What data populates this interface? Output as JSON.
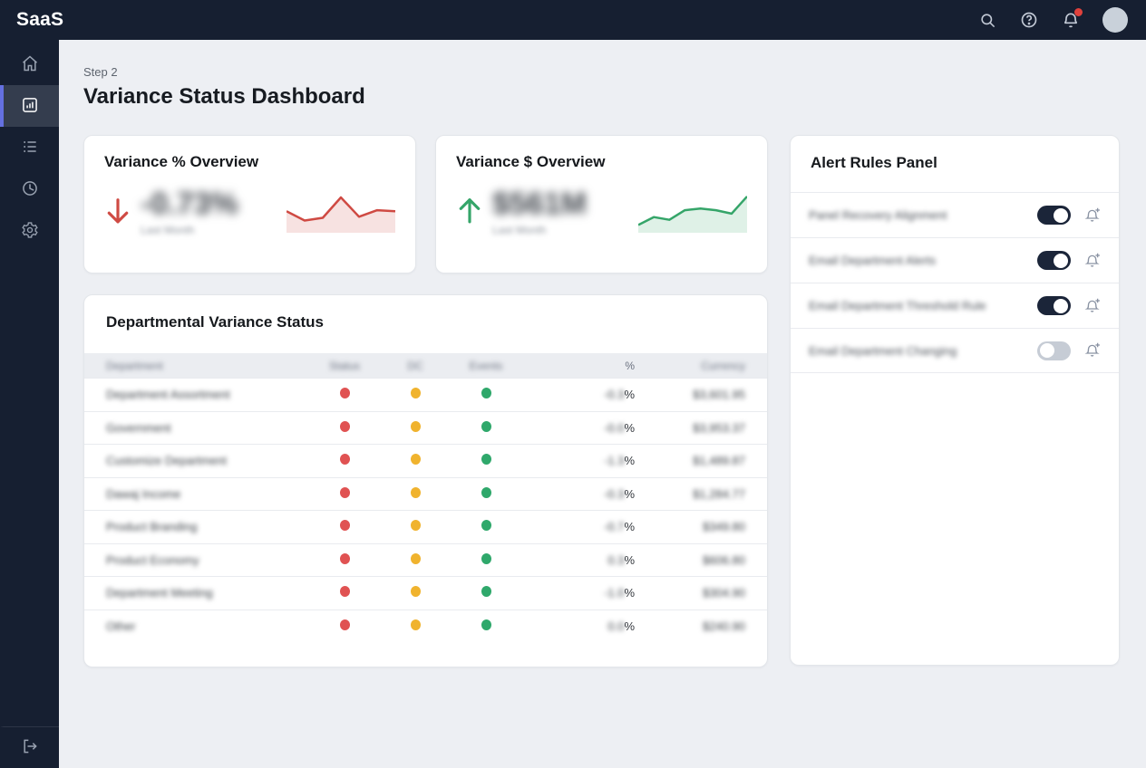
{
  "navbar": {
    "brand": "SaaS",
    "icons": [
      "search-icon",
      "help-icon",
      "bell-icon",
      "avatar"
    ],
    "notification_badge_color": "#e0413c",
    "background": "#161f31"
  },
  "sidebar": {
    "accent": "#6470e0",
    "items": [
      {
        "name": "home",
        "icon": "home-icon",
        "active": false
      },
      {
        "name": "dashboard",
        "icon": "bar-chart-icon",
        "active": true
      },
      {
        "name": "list",
        "icon": "list-icon",
        "active": false
      },
      {
        "name": "history",
        "icon": "clock-icon",
        "active": false
      },
      {
        "name": "settings",
        "icon": "gear-icon",
        "active": false
      }
    ],
    "footer": {
      "name": "logout",
      "icon": "logout-icon"
    }
  },
  "page": {
    "step": "Step 2",
    "title": "Variance Status Dashboard"
  },
  "cards": {
    "variance_pct": {
      "title": "Variance % Overview",
      "value": "-0.73%",
      "subtitle": "Last Month",
      "trend": "down",
      "color": "#cf4a43",
      "spark": [
        52,
        25,
        33,
        92,
        36,
        55,
        52
      ]
    },
    "variance_usd": {
      "title": "Variance $ Overview",
      "value": "$561M",
      "subtitle": "Last Month",
      "trend": "up",
      "color": "#35a569",
      "spark": [
        12,
        35,
        27,
        55,
        60,
        55,
        45,
        95
      ]
    }
  },
  "alert_panel": {
    "title": "Alert Rules Panel",
    "toggle_on_color": "#1b2539",
    "rules": [
      {
        "label": "Panel Recovery Alignment",
        "enabled": true
      },
      {
        "label": "Email Department Alerts",
        "enabled": true
      },
      {
        "label": "Email Department Threshold Rule",
        "enabled": true
      },
      {
        "label": "Email Department Changing",
        "enabled": false
      }
    ]
  },
  "table": {
    "title": "Departmental Variance Status",
    "columns": [
      "Department",
      "Status",
      "DC",
      "Events",
      "%",
      "Currency"
    ],
    "pct_sign": "%",
    "status_colors": {
      "red": "#e05252",
      "yellow": "#f0b32e",
      "green": "#2fa86b"
    },
    "rows": [
      {
        "department": "Department Assortment",
        "pct": "-0.3",
        "currency": "$3,601.95"
      },
      {
        "department": "Government",
        "pct": "-0.0",
        "currency": "$3,953.37"
      },
      {
        "department": "Customize Department",
        "pct": "-1.3",
        "currency": "$1,489.87"
      },
      {
        "department": "Dawaj Income",
        "pct": "-0.3",
        "currency": "$1,284.77"
      },
      {
        "department": "Product Branding",
        "pct": "-0.7",
        "currency": "$349.80"
      },
      {
        "department": "Product Economy",
        "pct": "0.3",
        "currency": "$606.80"
      },
      {
        "department": "Department Meeting",
        "pct": "-1.0",
        "currency": "$304.90"
      },
      {
        "department": "Other",
        "pct": "0.0",
        "currency": "$240.90"
      }
    ]
  }
}
